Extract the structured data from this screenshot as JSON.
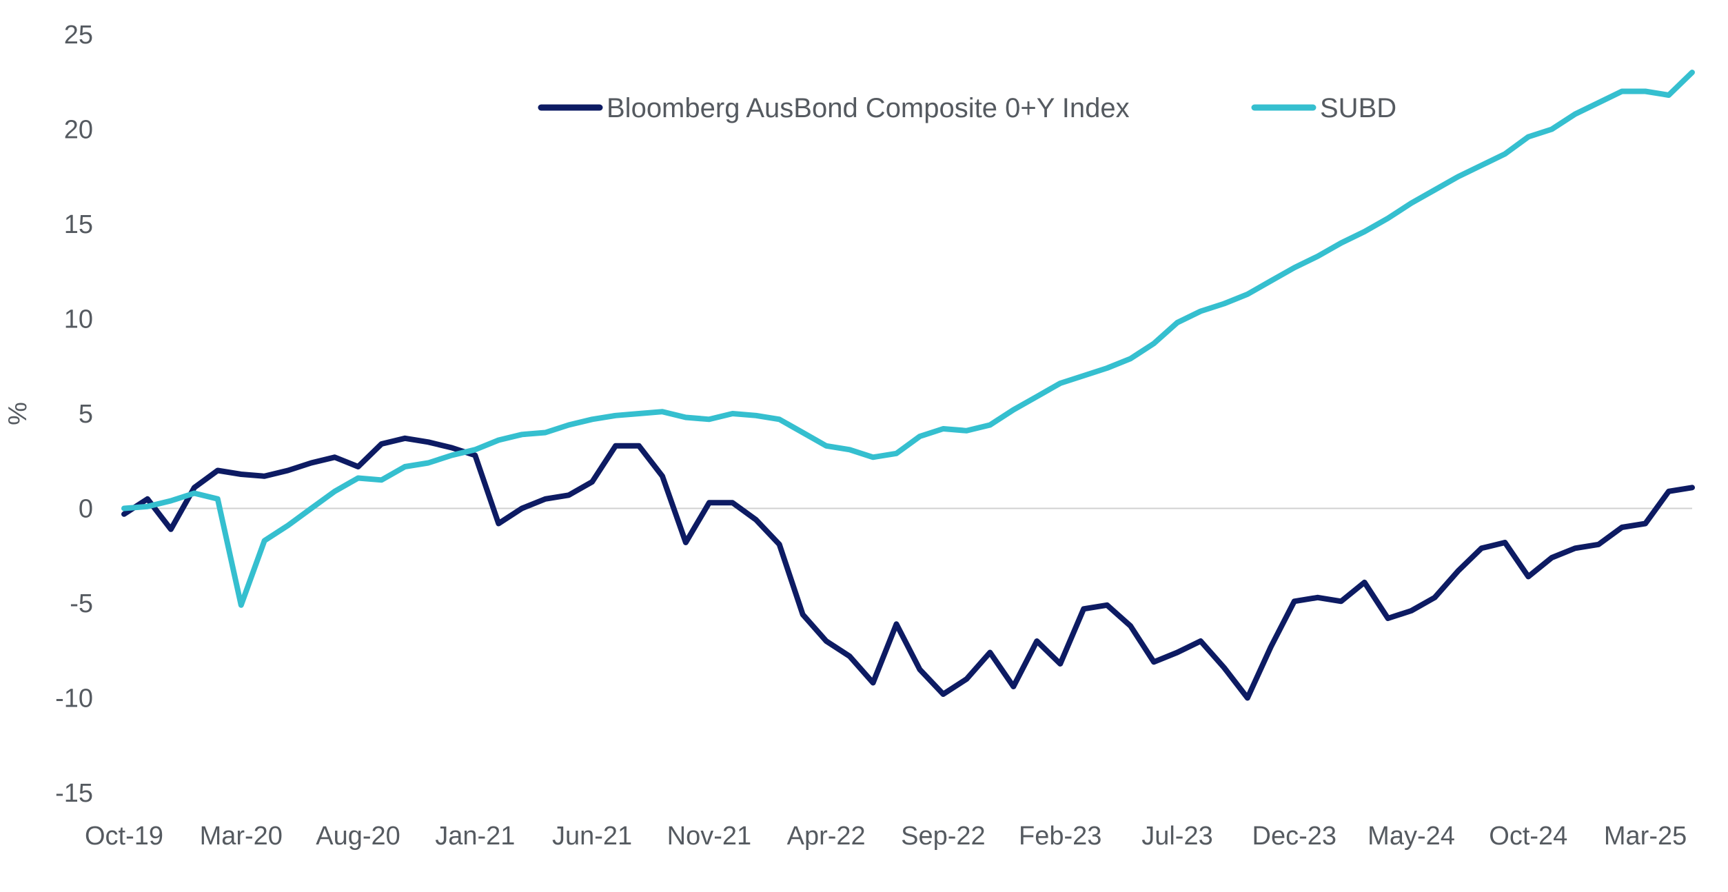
{
  "chart_data": {
    "type": "line",
    "title": "",
    "xlabel": "",
    "ylabel": "%",
    "ylim": [
      -15,
      25
    ],
    "yticks": [
      25,
      20,
      15,
      10,
      5,
      0,
      -5,
      -10,
      -15
    ],
    "ytick_labels": [
      "25",
      "20",
      "15",
      "10",
      "5",
      "0",
      "-5",
      "-10",
      "-15"
    ],
    "x_start": "Oct-19",
    "xtick_labels": [
      "Oct-19",
      "Mar-20",
      "Aug-20",
      "Jan-21",
      "Jun-21",
      "Nov-21",
      "Apr-22",
      "Sep-22",
      "Feb-23",
      "Jul-23",
      "Dec-23",
      "May-24",
      "Oct-24",
      "Mar-25"
    ],
    "xtick_positions": [
      0,
      5,
      10,
      15,
      20,
      25,
      30,
      35,
      40,
      45,
      50,
      55,
      60,
      65
    ],
    "legend_position": "top-center",
    "series": [
      {
        "name": "Bloomberg AusBond Composite 0+Y Index",
        "color": "#0d1b63",
        "values": [
          -0.3,
          0.5,
          -1.1,
          1.1,
          2.0,
          1.8,
          1.7,
          2.0,
          2.4,
          2.7,
          2.2,
          3.4,
          3.7,
          3.5,
          3.2,
          2.8,
          -0.8,
          0.0,
          0.5,
          0.7,
          1.4,
          3.3,
          3.3,
          1.7,
          -1.8,
          0.3,
          0.3,
          -0.6,
          -1.9,
          -5.6,
          -7.0,
          -7.8,
          -9.2,
          -6.1,
          -8.5,
          -9.8,
          -9.0,
          -7.6,
          -9.4,
          -7.0,
          -8.2,
          -5.3,
          -5.1,
          -6.2,
          -8.1,
          -7.6,
          -7.0,
          -8.4,
          -10.0,
          -7.3,
          -4.9,
          -4.7,
          -4.9,
          -3.9,
          -5.8,
          -5.4,
          -4.7,
          -3.3,
          -2.1,
          -1.8,
          -3.6,
          -2.6,
          -2.1,
          -1.9,
          -1.0,
          -0.8,
          0.9,
          1.1
        ]
      },
      {
        "name": "SUBD",
        "color": "#35bfcf",
        "values": [
          0.0,
          0.1,
          0.4,
          0.8,
          0.5,
          -5.1,
          -1.7,
          -0.9,
          0.0,
          0.9,
          1.6,
          1.5,
          2.2,
          2.4,
          2.8,
          3.1,
          3.6,
          3.9,
          4.0,
          4.4,
          4.7,
          4.9,
          5.0,
          5.1,
          4.8,
          4.7,
          5.0,
          4.9,
          4.7,
          4.0,
          3.3,
          3.1,
          2.7,
          2.9,
          3.8,
          4.2,
          4.1,
          4.4,
          5.2,
          5.9,
          6.6,
          7.0,
          7.4,
          7.9,
          8.7,
          9.8,
          10.4,
          10.8,
          11.3,
          12.0,
          12.7,
          13.3,
          14.0,
          14.6,
          15.3,
          16.1,
          16.8,
          17.5,
          18.1,
          18.7,
          19.6,
          20.0,
          20.8,
          21.4,
          22.0,
          22.0,
          21.8,
          23.0
        ]
      }
    ]
  }
}
